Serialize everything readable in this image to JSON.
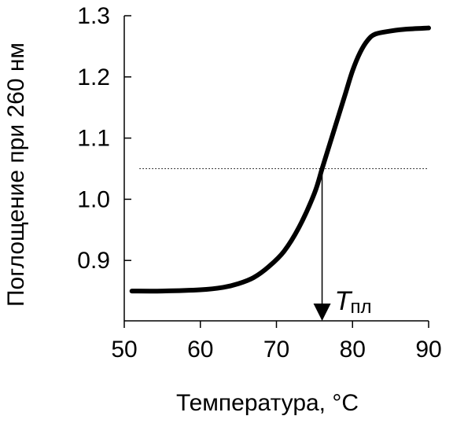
{
  "chart_data": {
    "type": "line",
    "title": "",
    "xlabel": "Температура, °C",
    "ylabel": "Поглощение при 260 нм",
    "xlim": [
      50,
      90
    ],
    "ylim": [
      0.82,
      1.3
    ],
    "x_ticks": [
      50,
      60,
      70,
      80,
      90
    ],
    "y_ticks": [
      0.9,
      1.0,
      1.1,
      1.2,
      1.3
    ],
    "x_tick_labels": [
      "50",
      "60",
      "70",
      "80",
      "90"
    ],
    "y_tick_labels": [
      "0.9",
      "1.0",
      "1.1",
      "1.2",
      "1.3"
    ],
    "grid": false,
    "legend": "none",
    "series": [
      {
        "color": "#000000",
        "x": [
          51,
          55,
          60,
          63,
          65,
          67,
          69,
          71,
          73,
          75,
          76,
          77,
          78,
          79,
          80,
          81,
          82,
          83,
          85,
          87,
          90
        ],
        "y": [
          0.85,
          0.85,
          0.852,
          0.856,
          0.862,
          0.872,
          0.89,
          0.915,
          0.955,
          1.01,
          1.05,
          1.09,
          1.13,
          1.17,
          1.21,
          1.24,
          1.26,
          1.27,
          1.275,
          1.278,
          1.28
        ]
      }
    ],
    "midline": {
      "y": 1.05,
      "x_range": [
        52,
        90
      ],
      "style": "dotted"
    },
    "melting_point": {
      "x": 76,
      "label": "T",
      "label_sub": "пл"
    }
  }
}
